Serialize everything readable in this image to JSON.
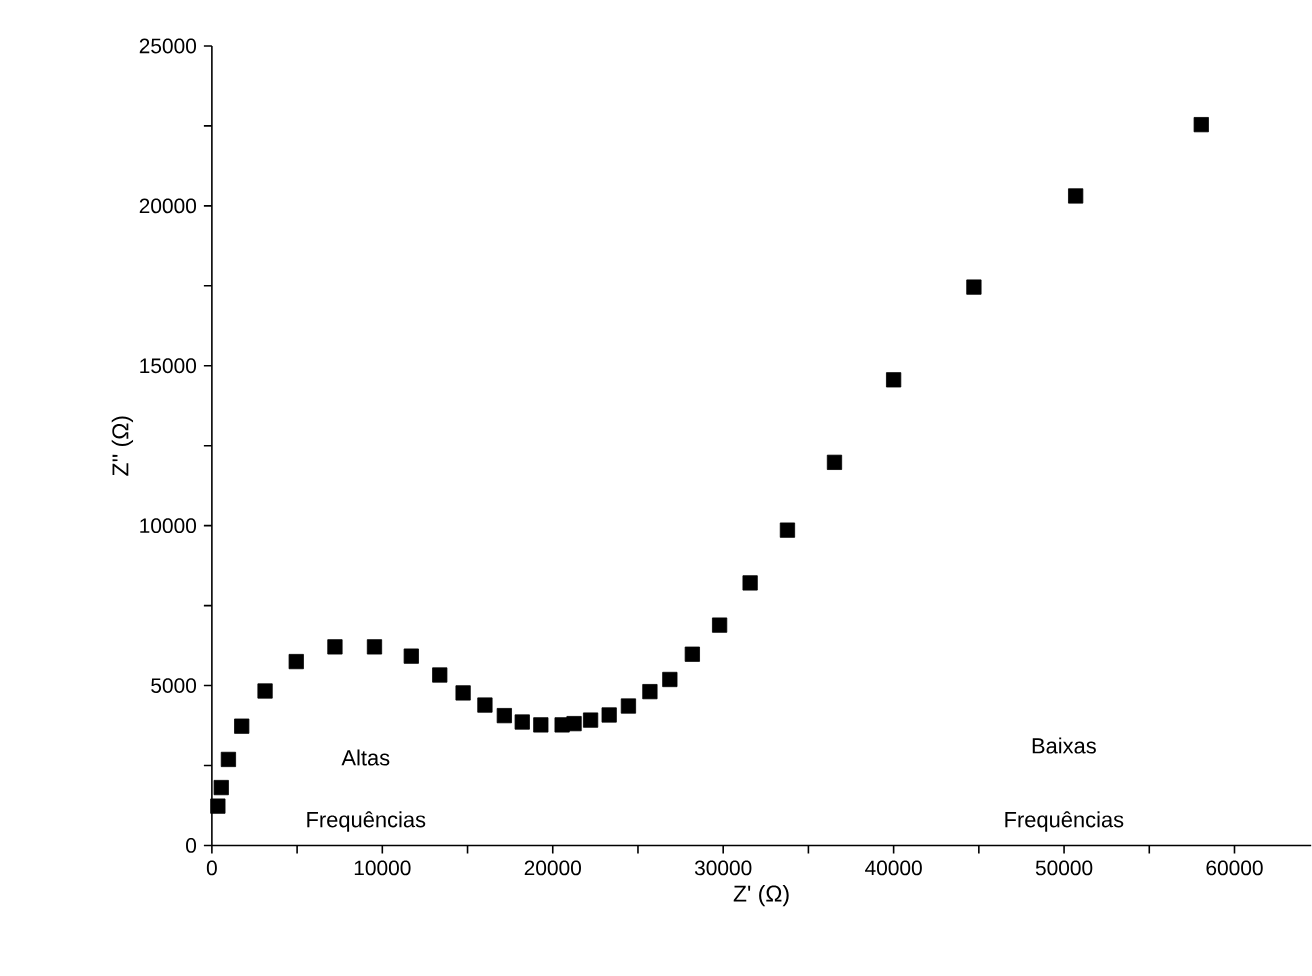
{
  "chart_data": {
    "type": "scatter",
    "xlabel": "Z' (Ω)",
    "ylabel": "Z'' (Ω)",
    "marker": "square",
    "xlim": [
      0,
      64500
    ],
    "ylim": [
      0,
      25000
    ],
    "xticks": [
      0,
      {
        "value": 5000,
        "label": null
      },
      10000,
      {
        "value": 15000,
        "label": null
      },
      20000,
      {
        "value": 25000,
        "label": null
      },
      30000,
      {
        "value": 35000,
        "label": null
      },
      40000,
      {
        "value": 45000,
        "label": null
      },
      50000,
      {
        "value": 55000,
        "label": null
      },
      60000
    ],
    "yticks": [
      0,
      {
        "value": 2500,
        "label": null
      },
      5000,
      {
        "value": 7500,
        "label": null
      },
      10000,
      {
        "value": 12500,
        "label": null
      },
      15000,
      {
        "value": 17500,
        "label": null
      },
      20000,
      {
        "value": 22500,
        "label": null
      },
      25000
    ],
    "annotations": [
      "Altas",
      "Frequências",
      "Baixas",
      "Frequências"
    ],
    "series": [
      {
        "color": "#000000",
        "x": [
          350,
          550,
          970,
          1750,
          3120,
          4950,
          7220,
          9540,
          11700,
          13370,
          14740,
          16020,
          17160,
          18210,
          19300,
          20550,
          21250,
          22220,
          23310,
          24440,
          25700,
          26870,
          28190,
          29790,
          31580,
          33770,
          36530,
          40000,
          44710,
          50680,
          58050
        ],
        "values": [
          1230,
          1810,
          2690,
          3730,
          4830,
          5750,
          6210,
          6210,
          5920,
          5330,
          4770,
          4390,
          4060,
          3860,
          3770,
          3770,
          3810,
          3920,
          4080,
          4360,
          4810,
          5190,
          5980,
          6890,
          8210,
          9860,
          11980,
          14560,
          17460,
          20310,
          22540
        ]
      }
    ]
  }
}
